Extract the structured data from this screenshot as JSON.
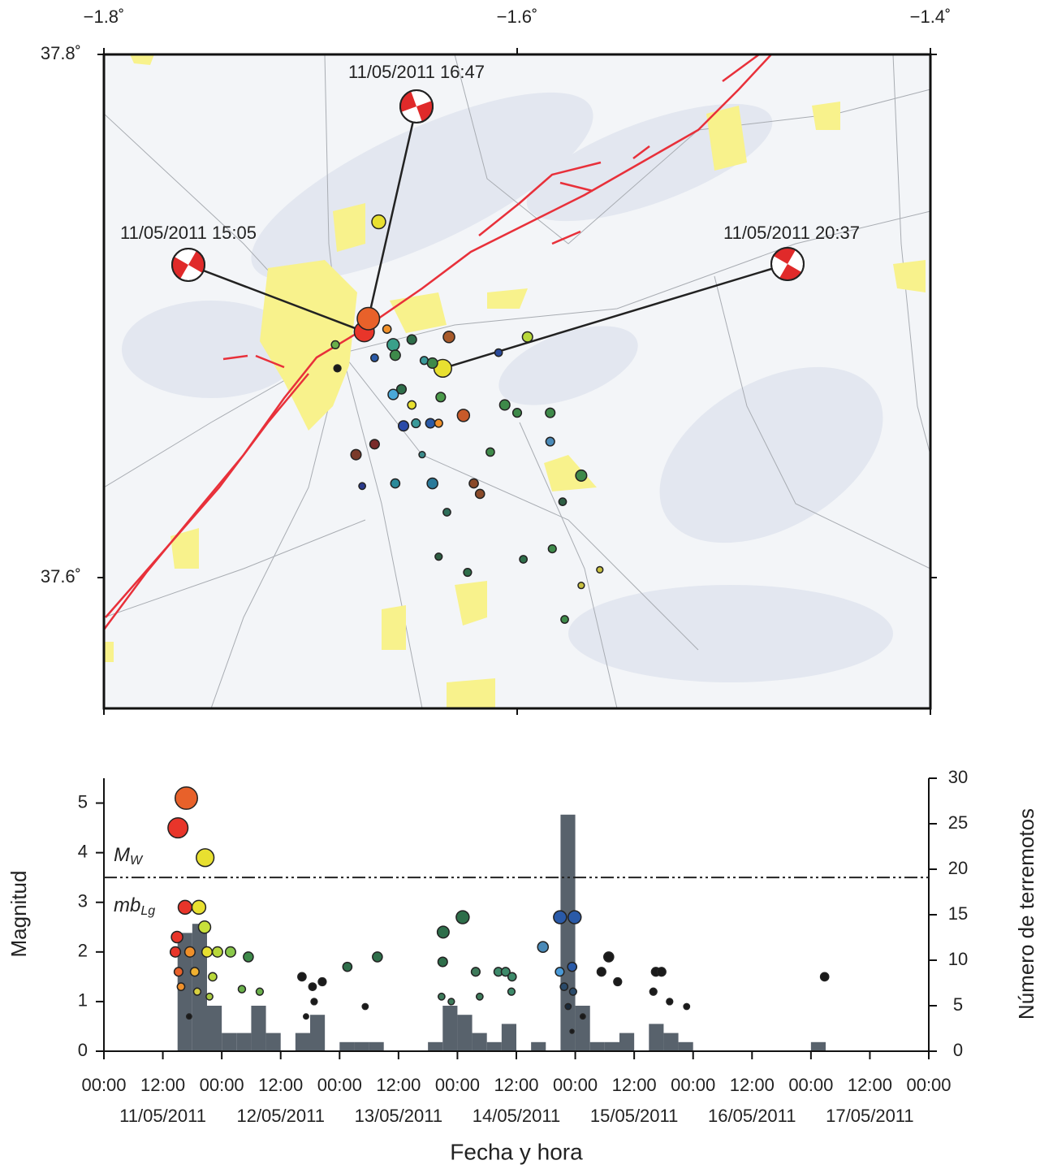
{
  "chart_data": [
    {
      "type": "map",
      "xlim": [
        -1.8,
        -1.4
      ],
      "ylim": [
        37.55,
        37.8
      ],
      "xticks": [
        {
          "value": -1.8,
          "label": "−1.8˚"
        },
        {
          "value": -1.6,
          "label": "−1.6˚"
        },
        {
          "value": -1.4,
          "label": "−1.4˚"
        }
      ],
      "yticks": [
        {
          "value": 37.6,
          "label": "37.6˚"
        },
        {
          "value": 37.8,
          "label": "37.8˚"
        }
      ],
      "focal_mechanism_labels": [
        "11/05/2011 15:05",
        "11/05/2011 16:47",
        "11/05/2011 20:37"
      ],
      "points": {
        "lon": [
          -1.674,
          -1.672,
          -1.636,
          -1.667,
          -1.663,
          -1.66,
          -1.659,
          -1.651,
          -1.633,
          -1.595,
          -1.609,
          -1.645,
          -1.641,
          -1.687,
          -1.669,
          -1.688,
          -1.66,
          -1.656,
          -1.651,
          -1.637,
          -1.626,
          -1.655,
          -1.649,
          -1.642,
          -1.638,
          -1.606,
          -1.6,
          -1.584,
          -1.584,
          -1.669,
          -1.678,
          -1.659,
          -1.641,
          -1.621,
          -1.618,
          -1.569,
          -1.578,
          -1.613,
          -1.583,
          -1.597,
          -1.624,
          -1.56,
          -1.569,
          -1.577,
          -1.638,
          -1.675,
          -1.646,
          -1.634
        ],
        "lat": [
          37.694,
          37.699,
          37.68,
          37.736,
          37.695,
          37.689,
          37.685,
          37.691,
          37.692,
          37.692,
          37.686,
          37.683,
          37.682,
          37.68,
          37.684,
          37.689,
          37.67,
          37.672,
          37.666,
          37.669,
          37.662,
          37.658,
          37.659,
          37.659,
          37.659,
          37.666,
          37.663,
          37.663,
          37.652,
          37.651,
          37.647,
          37.636,
          37.636,
          37.636,
          37.632,
          37.639,
          37.629,
          37.648,
          37.611,
          37.607,
          37.602,
          37.603,
          37.597,
          37.584,
          37.608,
          37.635,
          37.647,
          37.625
        ],
        "magnitude": [
          4.5,
          5.1,
          3.9,
          2.9,
          1.5,
          2.5,
          2.0,
          1.8,
          2.3,
          2.0,
          1.3,
          1.4,
          2.0,
          1.2,
          1.3,
          1.4,
          2.0,
          1.8,
          1.5,
          1.8,
          2.5,
          2.0,
          1.6,
          1.8,
          1.4,
          2.0,
          1.6,
          1.8,
          1.6,
          1.8,
          2.0,
          1.7,
          2.1,
          1.7,
          1.7,
          2.2,
          1.3,
          1.5,
          1.4,
          1.3,
          1.4,
          1.0,
          1.0,
          1.3,
          1.2,
          1.1,
          1.0,
          1.3
        ],
        "color": [
          "#e8352a",
          "#e8612a",
          "#e8e030",
          "#e8e030",
          "#f0902a",
          "#3aa08a",
          "#3e8a4a",
          "#2e6e4a",
          "#a85a2a",
          "#b8d83a",
          "#2a4a9a",
          "#3a9a9a",
          "#3e8a4a",
          "#1a1a1a",
          "#2a5aa8",
          "#6ab04a",
          "#4aa8d8",
          "#2e6e4a",
          "#e8e030",
          "#4a9a4a",
          "#c85a2a",
          "#2a4aa8",
          "#3a9a9a",
          "#2a5aa8",
          "#f0902a",
          "#3e8a4a",
          "#3e8a4a",
          "#3e8a4a",
          "#4a8ab8",
          "#7a2a2a",
          "#7a3a2a",
          "#2a8a9a",
          "#2a7a9a",
          "#8a4a2a",
          "#8a4a2a",
          "#3e8a4a",
          "#2e5e44",
          "#3e8a4a",
          "#3e8a4a",
          "#2e6e4a",
          "#2e6e4a",
          "#c8c040",
          "#c8c040",
          "#3e8a4a",
          "#2e5e44",
          "#2a3a8a",
          "#3a8a8a",
          "#2e6e5a"
        ]
      }
    },
    {
      "type": "combo",
      "ylabel": "Magnitud",
      "y2label": "Número de terremotos",
      "xlabel": "Fecha y hora",
      "xlim": [
        "2011-05-11T00:00",
        "2011-05-18T00:00"
      ],
      "xticks": [
        {
          "value": "2011-05-11T00:00",
          "label": "00:00"
        },
        {
          "value": "2011-05-11T12:00",
          "label": "12:00"
        },
        {
          "value": "2011-05-12T00:00",
          "label": "00:00"
        },
        {
          "value": "2011-05-12T12:00",
          "label": "12:00"
        },
        {
          "value": "2011-05-13T00:00",
          "label": "00:00"
        },
        {
          "value": "2011-05-13T12:00",
          "label": "12:00"
        },
        {
          "value": "2011-05-14T00:00",
          "label": "00:00"
        },
        {
          "value": "2011-05-14T12:00",
          "label": "12:00"
        },
        {
          "value": "2011-05-15T00:00",
          "label": "00:00"
        },
        {
          "value": "2011-05-15T12:00",
          "label": "12:00"
        },
        {
          "value": "2011-05-16T00:00",
          "label": "00:00"
        },
        {
          "value": "2011-05-16T12:00",
          "label": "12:00"
        },
        {
          "value": "2011-05-17T00:00",
          "label": "00:00"
        },
        {
          "value": "2011-05-17T12:00",
          "label": "12:00"
        },
        {
          "value": "2011-05-18T00:00",
          "label": "00:00"
        }
      ],
      "xdate_labels": [
        {
          "value": "2011-05-11T12:00",
          "label": "11/05/2011"
        },
        {
          "value": "2011-05-12T12:00",
          "label": "12/05/2011"
        },
        {
          "value": "2011-05-13T12:00",
          "label": "13/05/2011"
        },
        {
          "value": "2011-05-14T12:00",
          "label": "14/05/2011"
        },
        {
          "value": "2011-05-15T12:00",
          "label": "15/05/2011"
        },
        {
          "value": "2011-05-16T12:00",
          "label": "16/05/2011"
        },
        {
          "value": "2011-05-17T12:00",
          "label": "17/05/2011"
        }
      ],
      "ylim": [
        0,
        5.5
      ],
      "yticks": [
        0,
        1,
        2,
        3,
        4,
        5
      ],
      "y2lim": [
        0,
        30
      ],
      "y2ticks": [
        0,
        5,
        10,
        15,
        20,
        25,
        30
      ],
      "threshold": {
        "value": 3.5,
        "upper_label": {
          "text": "M",
          "sub": "W"
        },
        "lower_label": {
          "text": "mb",
          "sub": "Lg"
        }
      },
      "histogram": {
        "axis": "y2",
        "color": "#58626c",
        "bins": [
          "2011-05-11T15:00",
          "2011-05-11T18:00",
          "2011-05-11T21:00",
          "2011-05-12T00:00",
          "2011-05-12T03:00",
          "2011-05-12T06:00",
          "2011-05-12T09:00",
          "2011-05-12T12:00",
          "2011-05-12T15:00",
          "2011-05-12T18:00",
          "2011-05-12T21:00",
          "2011-05-13T00:00",
          "2011-05-13T03:00",
          "2011-05-13T06:00",
          "2011-05-13T09:00",
          "2011-05-13T12:00",
          "2011-05-13T15:00",
          "2011-05-13T18:00",
          "2011-05-13T21:00",
          "2011-05-14T00:00",
          "2011-05-14T03:00",
          "2011-05-14T06:00",
          "2011-05-14T09:00",
          "2011-05-14T12:00",
          "2011-05-14T15:00",
          "2011-05-14T18:00",
          "2011-05-14T21:00",
          "2011-05-15T00:00",
          "2011-05-15T03:00",
          "2011-05-15T06:00",
          "2011-05-15T09:00",
          "2011-05-15T12:00",
          "2011-05-15T15:00",
          "2011-05-15T18:00",
          "2011-05-15T21:00",
          "2011-05-16T00:00",
          "2011-05-16T03:00",
          "2011-05-16T06:00",
          "2011-05-16T09:00",
          "2011-05-16T12:00",
          "2011-05-16T15:00",
          "2011-05-16T18:00",
          "2011-05-16T21:00",
          "2011-05-17T00:00",
          "2011-05-17T03:00",
          "2011-05-17T06:00"
        ],
        "counts": [
          13,
          14,
          5,
          2,
          2,
          5,
          2,
          0,
          2,
          4,
          0,
          1,
          1,
          1,
          0,
          0,
          0,
          1,
          5,
          4,
          2,
          1,
          3,
          0,
          1,
          0,
          26,
          5,
          1,
          1,
          2,
          0,
          3,
          2,
          1,
          0,
          0,
          0,
          0,
          0,
          0,
          0,
          0,
          1,
          0
        ]
      },
      "events": {
        "x": [
          "2011-05-11T15:05",
          "2011-05-11T16:47",
          "2011-05-11T20:37",
          "2011-05-11T16:32",
          "2011-05-11T19:20",
          "2011-05-11T14:54",
          "2011-05-11T20:30",
          "2011-05-11T14:33",
          "2011-05-11T17:31",
          "2011-05-11T21:00",
          "2011-05-11T23:08",
          "2011-05-12T01:47",
          "2011-05-12T05:25",
          "2011-05-11T15:12",
          "2011-05-11T18:30",
          "2011-05-11T22:09",
          "2011-05-11T15:42",
          "2011-05-11T19:00",
          "2011-05-11T21:30",
          "2011-05-12T04:06",
          "2011-05-12T07:44",
          "2011-05-11T17:21",
          "2011-05-12T16:20",
          "2011-05-12T18:29",
          "2011-05-12T20:28",
          "2011-05-12T18:49",
          "2011-05-12T17:10",
          "2011-05-13T01:35",
          "2011-05-13T07:42",
          "2011-05-13T05:13",
          "2011-05-13T21:06",
          "2011-05-14T01:04",
          "2011-05-13T21:00",
          "2011-05-14T03:43",
          "2011-05-13T20:46",
          "2011-05-13T22:45",
          "2011-05-14T04:32",
          "2011-05-14T08:20",
          "2011-05-14T09:49",
          "2011-05-14T11:08",
          "2011-05-14T11:00",
          "2011-05-14T17:25",
          "2011-05-14T20:54",
          "2011-05-14T23:52",
          "2011-05-14T20:50",
          "2011-05-14T23:22",
          "2011-05-14T21:43",
          "2011-05-14T23:33",
          "2011-05-14T22:33",
          "2011-05-15T01:32",
          "2011-05-14T23:20",
          "2011-05-15T06:49",
          "2011-05-15T05:20",
          "2011-05-15T08:38",
          "2011-05-15T16:24",
          "2011-05-15T17:34",
          "2011-05-15T15:54",
          "2011-05-15T19:13",
          "2011-05-15T22:41",
          "2011-05-17T02:47"
        ],
        "values": [
          4.5,
          5.1,
          3.9,
          2.9,
          2.9,
          2.3,
          2.5,
          2.0,
          2.0,
          2.0,
          2.0,
          2.0,
          1.9,
          1.6,
          1.6,
          1.5,
          1.3,
          1.2,
          1.1,
          1.25,
          1.2,
          0.7,
          1.5,
          1.3,
          1.4,
          1.0,
          0.7,
          1.7,
          1.9,
          0.9,
          2.4,
          2.7,
          1.8,
          1.6,
          1.1,
          1.0,
          1.1,
          1.6,
          1.6,
          1.5,
          1.2,
          2.1,
          2.7,
          2.7,
          1.6,
          1.7,
          1.3,
          1.2,
          0.9,
          0.7,
          0.4,
          1.9,
          1.6,
          1.4,
          1.6,
          1.6,
          1.2,
          1.0,
          0.9,
          1.5
        ],
        "colors": [
          "#e8352a",
          "#e8612a",
          "#e8e030",
          "#e8352a",
          "#e8e030",
          "#e8352a",
          "#c8e03a",
          "#e8352a",
          "#f0902a",
          "#e8e030",
          "#b8d83a",
          "#8ac84a",
          "#3e8a4a",
          "#e8612a",
          "#f0b030",
          "#b8d83a",
          "#f0902a",
          "#d8d040",
          "#a8c840",
          "#6ab04a",
          "#6ab04a",
          "#1a1a1a",
          "#1a1a1a",
          "#1a1a1a",
          "#1a1a1a",
          "#1a1a1a",
          "#1a1a1a",
          "#2e6e4a",
          "#2e6e4a",
          "#1a1a1a",
          "#2e6e4a",
          "#2e6e4a",
          "#2e6e4a",
          "#3e7a5a",
          "#3e7a5a",
          "#3e7a5a",
          "#3e7a5a",
          "#3e8a6a",
          "#3e8a6a",
          "#3e8a6a",
          "#3e8a6a",
          "#4a8ab8",
          "#2a5aa8",
          "#2a5aa8",
          "#4a9ad8",
          "#2a5aa8",
          "#2a4a6a",
          "#2a4a6a",
          "#1a2a3a",
          "#1a1a1a",
          "#1a1a1a",
          "#1a1a1a",
          "#1a1a1a",
          "#1a1a1a",
          "#1a1a1a",
          "#1a1a1a",
          "#1a1a1a",
          "#1a1a1a",
          "#1a1a1a",
          "#1a1a1a"
        ]
      }
    }
  ]
}
